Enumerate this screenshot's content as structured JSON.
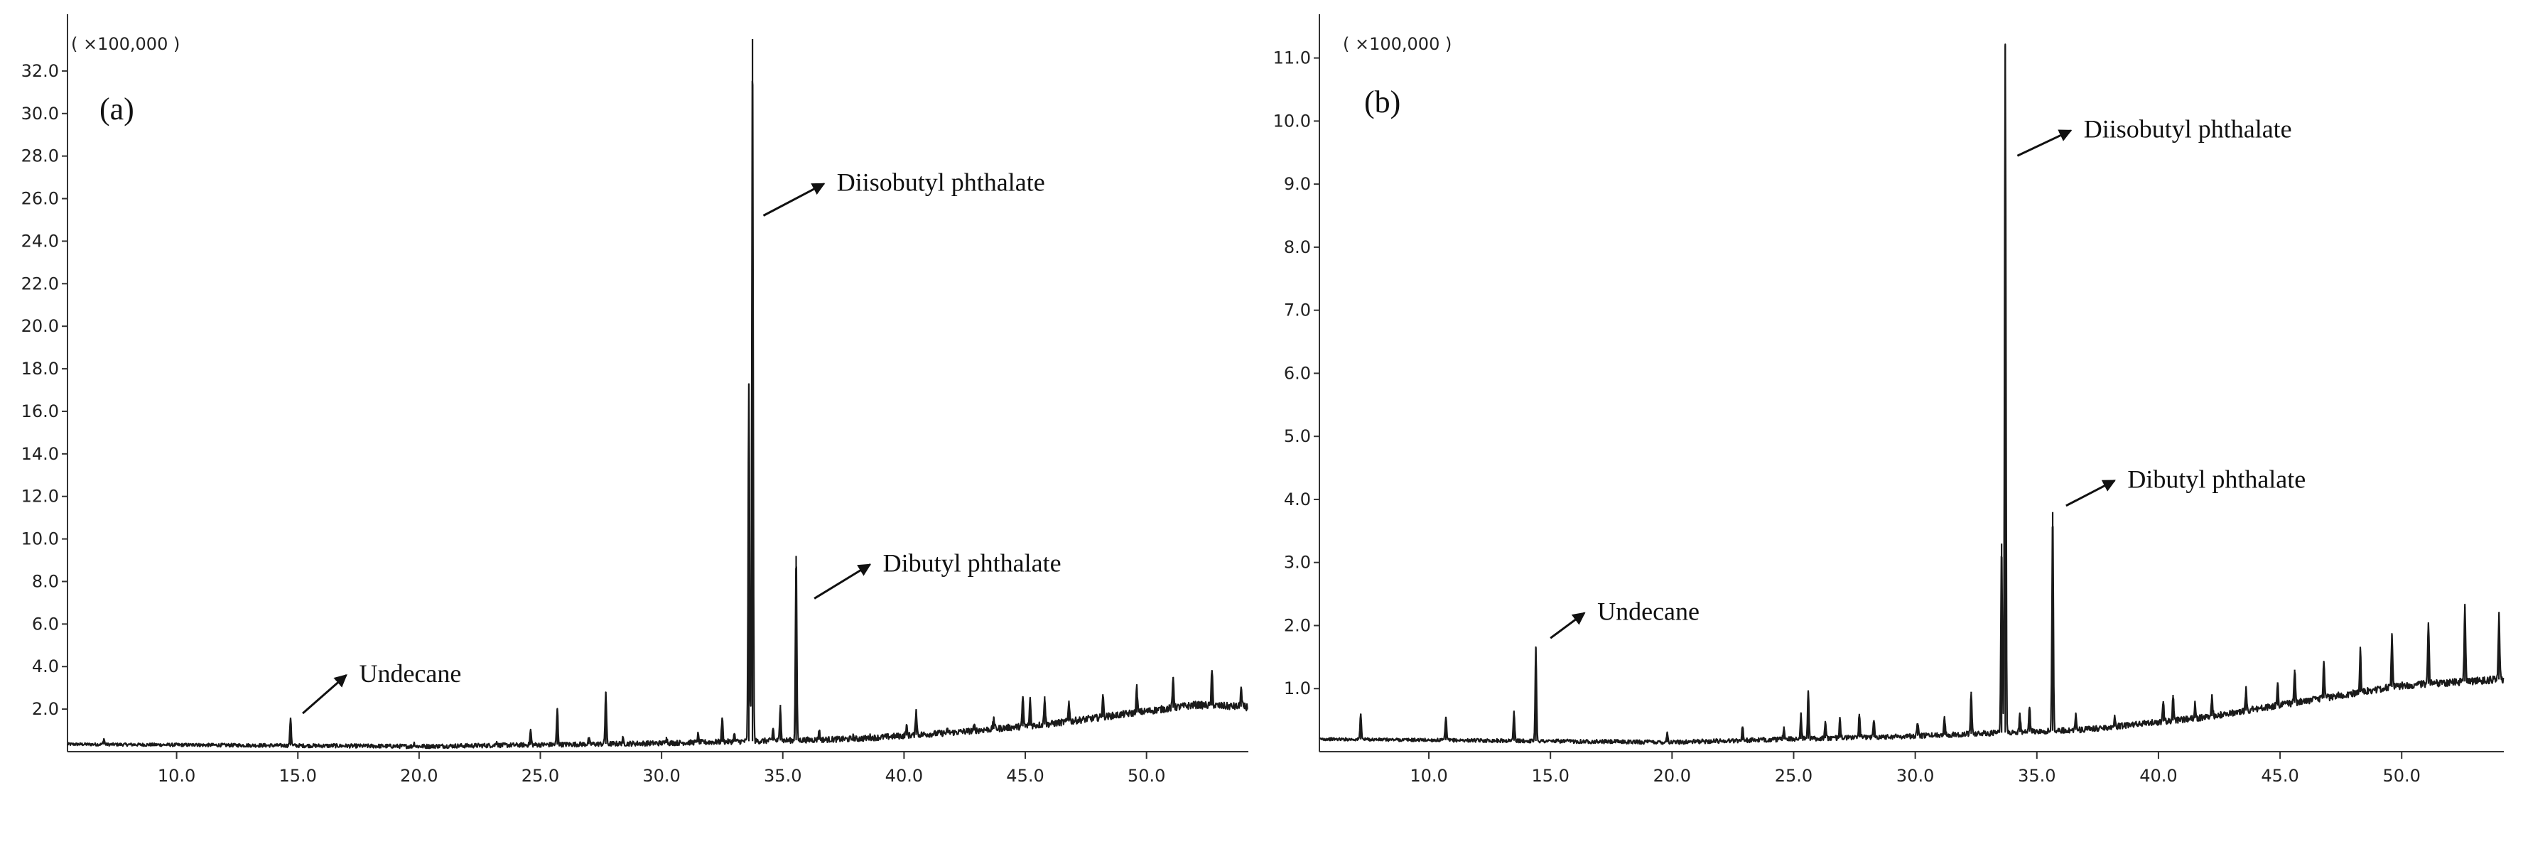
{
  "chart_data": [
    {
      "type": "line",
      "panel_label": "(a)",
      "y_scale_label": "( ×100,000 )",
      "xlabel": "",
      "ylabel": "",
      "xlim": [
        5.5,
        54.2
      ],
      "ylim": [
        0,
        33.5
      ],
      "x_ticks": [
        10.0,
        15.0,
        20.0,
        25.0,
        30.0,
        35.0,
        40.0,
        45.0,
        50.0
      ],
      "x_tick_labels": [
        "10.0",
        "15.0",
        "20.0",
        "25.0",
        "30.0",
        "35.0",
        "40.0",
        "45.0",
        "50.0"
      ],
      "y_ticks": [
        2,
        4,
        6,
        8,
        10,
        12,
        14,
        16,
        18,
        20,
        22,
        24,
        26,
        28,
        30,
        32
      ],
      "y_tick_labels": [
        "2.0",
        "4.0",
        "6.0",
        "8.0",
        "10.0",
        "12.0",
        "14.0",
        "16.0",
        "18.0",
        "20.0",
        "22.0",
        "24.0",
        "26.0",
        "28.0",
        "30.0",
        "32.0"
      ],
      "baseline": [
        [
          5.5,
          0.35
        ],
        [
          20,
          0.25
        ],
        [
          30,
          0.4
        ],
        [
          38,
          0.6
        ],
        [
          42,
          0.9
        ],
        [
          46,
          1.3
        ],
        [
          50,
          1.9
        ],
        [
          52,
          2.2
        ],
        [
          54.2,
          2.1
        ]
      ],
      "peaks": [
        {
          "rt": 7.0,
          "height": 0.6
        },
        {
          "rt": 10.8,
          "height": 0.4
        },
        {
          "rt": 14.7,
          "height": 1.6
        },
        {
          "rt": 16.5,
          "height": 0.3
        },
        {
          "rt": 19.8,
          "height": 0.4
        },
        {
          "rt": 23.2,
          "height": 0.5
        },
        {
          "rt": 24.6,
          "height": 1.0
        },
        {
          "rt": 25.7,
          "height": 2.0
        },
        {
          "rt": 27.0,
          "height": 0.6
        },
        {
          "rt": 27.7,
          "height": 2.8
        },
        {
          "rt": 28.4,
          "height": 0.6
        },
        {
          "rt": 30.2,
          "height": 0.7
        },
        {
          "rt": 31.5,
          "height": 0.8
        },
        {
          "rt": 32.5,
          "height": 1.6
        },
        {
          "rt": 33.0,
          "height": 0.8
        },
        {
          "rt": 33.6,
          "height": 17.3
        },
        {
          "rt": 33.75,
          "height": 33.5
        },
        {
          "rt": 34.6,
          "height": 1.1
        },
        {
          "rt": 34.9,
          "height": 2.2
        },
        {
          "rt": 35.55,
          "height": 9.2
        },
        {
          "rt": 36.5,
          "height": 1.0
        },
        {
          "rt": 37.9,
          "height": 0.7
        },
        {
          "rt": 38.6,
          "height": 0.7
        },
        {
          "rt": 40.1,
          "height": 1.2
        },
        {
          "rt": 40.5,
          "height": 2.0
        },
        {
          "rt": 41.8,
          "height": 1.0
        },
        {
          "rt": 42.9,
          "height": 1.2
        },
        {
          "rt": 43.7,
          "height": 1.6
        },
        {
          "rt": 44.9,
          "height": 2.6
        },
        {
          "rt": 45.2,
          "height": 2.5
        },
        {
          "rt": 45.8,
          "height": 2.6
        },
        {
          "rt": 46.8,
          "height": 2.4
        },
        {
          "rt": 48.2,
          "height": 2.7
        },
        {
          "rt": 49.6,
          "height": 3.0
        },
        {
          "rt": 51.1,
          "height": 3.5
        },
        {
          "rt": 52.7,
          "height": 3.8
        },
        {
          "rt": 53.9,
          "height": 3.0
        }
      ],
      "annotations": [
        {
          "text": "Diisobutyl phthalate",
          "x": 34.2,
          "y": 25.2,
          "tx": 36.7,
          "ty": 26.7
        },
        {
          "text": "Dibutyl phthalate",
          "x": 36.3,
          "y": 7.2,
          "tx": 38.6,
          "ty": 8.8
        },
        {
          "text": "Undecane",
          "x": 15.2,
          "y": 1.8,
          "tx": 17.0,
          "ty": 3.6
        }
      ]
    },
    {
      "type": "line",
      "panel_label": "(b)",
      "y_scale_label": "( ×100,000 )",
      "xlabel": "",
      "ylabel": "",
      "xlim": [
        5.5,
        54.2
      ],
      "ylim": [
        0,
        11.3
      ],
      "x_ticks": [
        10.0,
        15.0,
        20.0,
        25.0,
        30.0,
        35.0,
        40.0,
        45.0,
        50.0
      ],
      "x_tick_labels": [
        "10.0",
        "15.0",
        "20.0",
        "25.0",
        "30.0",
        "35.0",
        "40.0",
        "45.0",
        "50.0"
      ],
      "y_ticks": [
        1,
        2,
        3,
        4,
        5,
        6,
        7,
        8,
        9,
        10,
        11
      ],
      "y_tick_labels": [
        "1.0",
        "2.0",
        "3.0",
        "4.0",
        "5.0",
        "6.0",
        "7.0",
        "8.0",
        "9.0",
        "10.0",
        "11.0"
      ],
      "baseline": [
        [
          5.5,
          0.2
        ],
        [
          20,
          0.15
        ],
        [
          30,
          0.25
        ],
        [
          37,
          0.35
        ],
        [
          42,
          0.55
        ],
        [
          46,
          0.8
        ],
        [
          50,
          1.05
        ],
        [
          54.2,
          1.15
        ]
      ],
      "peaks": [
        {
          "rt": 7.2,
          "height": 0.6
        },
        {
          "rt": 10.7,
          "height": 0.55
        },
        {
          "rt": 13.5,
          "height": 0.65
        },
        {
          "rt": 14.4,
          "height": 1.65
        },
        {
          "rt": 19.8,
          "height": 0.3
        },
        {
          "rt": 22.9,
          "height": 0.4
        },
        {
          "rt": 24.6,
          "height": 0.4
        },
        {
          "rt": 25.3,
          "height": 0.6
        },
        {
          "rt": 25.6,
          "height": 0.95
        },
        {
          "rt": 26.3,
          "height": 0.45
        },
        {
          "rt": 26.9,
          "height": 0.55
        },
        {
          "rt": 27.7,
          "height": 0.6
        },
        {
          "rt": 28.3,
          "height": 0.5
        },
        {
          "rt": 30.1,
          "height": 0.45
        },
        {
          "rt": 31.2,
          "height": 0.55
        },
        {
          "rt": 32.3,
          "height": 0.95
        },
        {
          "rt": 33.55,
          "height": 3.3
        },
        {
          "rt": 33.7,
          "height": 11.2
        },
        {
          "rt": 34.3,
          "height": 0.6
        },
        {
          "rt": 34.7,
          "height": 0.7
        },
        {
          "rt": 35.65,
          "height": 3.8
        },
        {
          "rt": 36.6,
          "height": 0.6
        },
        {
          "rt": 38.2,
          "height": 0.55
        },
        {
          "rt": 40.2,
          "height": 0.8
        },
        {
          "rt": 40.6,
          "height": 0.9
        },
        {
          "rt": 41.5,
          "height": 0.75
        },
        {
          "rt": 42.2,
          "height": 0.9
        },
        {
          "rt": 43.6,
          "height": 1.0
        },
        {
          "rt": 44.9,
          "height": 1.1
        },
        {
          "rt": 45.6,
          "height": 1.3
        },
        {
          "rt": 46.8,
          "height": 1.4
        },
        {
          "rt": 48.3,
          "height": 1.6
        },
        {
          "rt": 49.6,
          "height": 1.85
        },
        {
          "rt": 51.1,
          "height": 2.05
        },
        {
          "rt": 52.6,
          "height": 2.3
        },
        {
          "rt": 54.0,
          "height": 2.15
        }
      ],
      "annotations": [
        {
          "text": "Diisobutyl phthalate",
          "x": 34.2,
          "y": 9.45,
          "tx": 36.4,
          "ty": 9.85
        },
        {
          "text": "Dibutyl phthalate",
          "x": 36.2,
          "y": 3.9,
          "tx": 38.2,
          "ty": 4.3
        },
        {
          "text": "Undecane",
          "x": 15.0,
          "y": 1.8,
          "tx": 16.4,
          "ty": 2.2
        }
      ]
    }
  ]
}
